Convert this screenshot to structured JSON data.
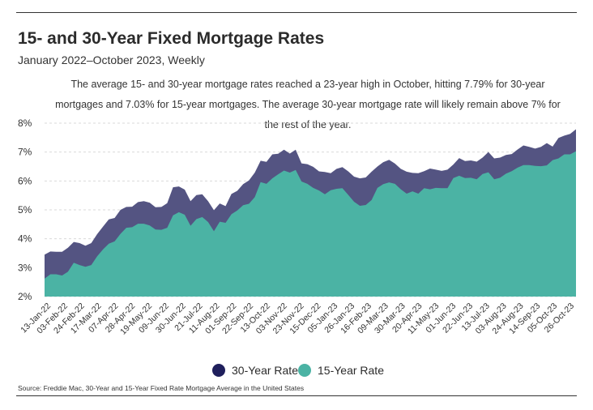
{
  "header": {
    "title": "15- and 30-Year Fixed Mortgage Rates",
    "subtitle": "January 2022–October 2023, Weekly",
    "description": "The average 15- and 30-year mortgage rates reached a 23-year high in October, hitting 7.79% for 30-year mortgages and 7.03% for 15-year mortgages. The average 30-year mortgage rate will likely remain above 7% for the rest of the year."
  },
  "source": "Source:  Freddie Mac, 30-Year  and 15-Year Fixed Rate Mortgage Average in the United States",
  "colors": {
    "rate30": "#545482",
    "rate15": "#4bb3a4",
    "dot30": "#1f1f5c",
    "dot15": "#4bb3a4"
  },
  "chart_data": {
    "type": "area",
    "ylim": [
      2,
      8
    ],
    "yticks": [
      2,
      3,
      4,
      5,
      6,
      7,
      8
    ],
    "ytick_labels": [
      "2%",
      "3%",
      "4%",
      "5%",
      "6%",
      "7%",
      "8%"
    ],
    "xtick_labels": [
      "13-Jan-22",
      "03-Feb-22",
      "24-Feb-22",
      "17-Mar-22",
      "07-Apr-22",
      "28-Apr-22",
      "19-May-22",
      "09-Jun-22",
      "30-Jun-22",
      "21-Jul-22",
      "11-Aug-22",
      "01-Sep-22",
      "22-Sep-22",
      "13-Oct-22",
      "03-Nov-22",
      "23-Nov-22",
      "15-Dec-22",
      "05-Jan-23",
      "26-Jan-23",
      "16-Feb-23",
      "09-Mar-23",
      "30-Mar-23",
      "20-Apr-23",
      "11-May-23",
      "01-Jun-23",
      "22-Jun-23",
      "13-Jul-23",
      "03-Aug-23",
      "24-Aug-23",
      "14-Sep-23",
      "05-Oct-23",
      "26-Oct-23"
    ],
    "grid": true,
    "legend": "bottom-center",
    "series": [
      {
        "name": "30-Year Rate",
        "values": [
          3.45,
          3.56,
          3.55,
          3.55,
          3.69,
          3.89,
          3.85,
          3.76,
          3.85,
          4.16,
          4.42,
          4.67,
          4.72,
          5.0,
          5.1,
          5.11,
          5.27,
          5.3,
          5.25,
          5.09,
          5.1,
          5.23,
          5.78,
          5.81,
          5.7,
          5.3,
          5.51,
          5.54,
          5.3,
          4.99,
          5.22,
          5.13,
          5.55,
          5.66,
          5.89,
          6.02,
          6.29,
          6.7,
          6.66,
          6.92,
          6.94,
          7.08,
          6.95,
          7.08,
          6.61,
          6.58,
          6.49,
          6.33,
          6.31,
          6.27,
          6.42,
          6.48,
          6.33,
          6.15,
          6.09,
          6.12,
          6.32,
          6.5,
          6.65,
          6.73,
          6.6,
          6.42,
          6.32,
          6.28,
          6.27,
          6.34,
          6.43,
          6.39,
          6.35,
          6.39,
          6.57,
          6.79,
          6.69,
          6.71,
          6.67,
          6.81,
          7.0,
          6.78,
          6.81,
          6.9,
          6.93,
          7.09,
          7.23,
          7.18,
          7.12,
          7.18,
          7.31,
          7.19,
          7.49,
          7.57,
          7.63,
          7.79
        ]
      },
      {
        "name": "15-Year Rate",
        "values": [
          2.62,
          2.77,
          2.77,
          2.73,
          2.86,
          3.17,
          3.09,
          3.03,
          3.09,
          3.39,
          3.63,
          3.83,
          3.91,
          4.17,
          4.38,
          4.4,
          4.52,
          4.52,
          4.46,
          4.32,
          4.31,
          4.38,
          4.81,
          4.92,
          4.83,
          4.45,
          4.68,
          4.75,
          4.58,
          4.26,
          4.59,
          4.55,
          4.85,
          4.98,
          5.16,
          5.21,
          5.44,
          5.96,
          5.9,
          6.09,
          6.23,
          6.36,
          6.29,
          6.38,
          5.98,
          5.9,
          5.76,
          5.67,
          5.54,
          5.68,
          5.73,
          5.75,
          5.52,
          5.28,
          5.14,
          5.17,
          5.34,
          5.76,
          5.89,
          5.95,
          5.9,
          5.71,
          5.56,
          5.64,
          5.56,
          5.75,
          5.71,
          5.76,
          5.75,
          5.75,
          6.1,
          6.18,
          6.1,
          6.11,
          6.06,
          6.24,
          6.3,
          6.06,
          6.11,
          6.25,
          6.34,
          6.46,
          6.55,
          6.55,
          6.52,
          6.51,
          6.54,
          6.72,
          6.78,
          6.92,
          6.92,
          7.03
        ]
      }
    ]
  }
}
